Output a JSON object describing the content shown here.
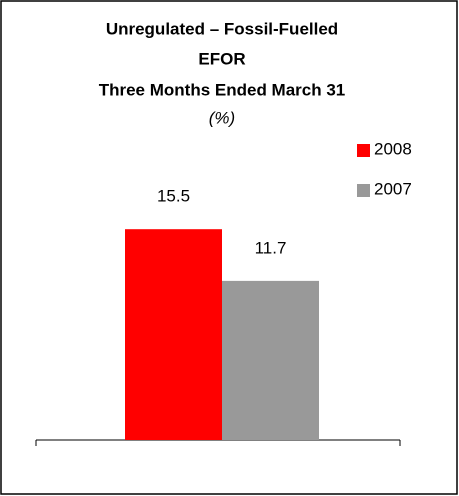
{
  "chart_data": {
    "type": "bar",
    "title_lines": [
      "Unregulated – Fossil-Fuelled",
      "EFOR",
      "Three Months Ended March 31"
    ],
    "subtitle": "(%)",
    "categories": [
      null
    ],
    "series": [
      {
        "name": "2008",
        "color": "#ff0000",
        "values": [
          15.5
        ]
      },
      {
        "name": "2007",
        "color": "#999999",
        "values": [
          11.7
        ]
      }
    ],
    "ylim": [
      0,
      20
    ]
  }
}
